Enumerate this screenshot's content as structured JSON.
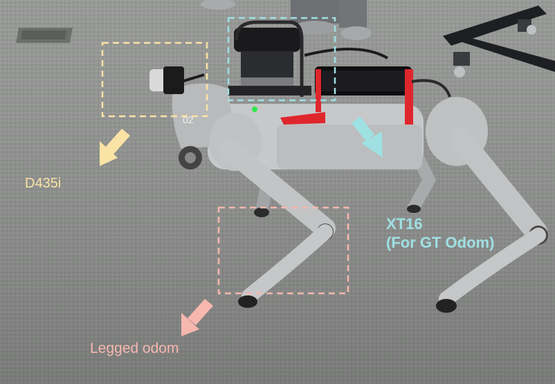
{
  "annotations": {
    "camera_label": "D435i",
    "lidar_label_line1": "XT16",
    "lidar_label_line2": "(For GT Odom)",
    "legs_label": "Legged odom"
  },
  "colors": {
    "camera": "#fbe3a6",
    "lidar": "#9fe0e3",
    "legs": "#f6b7ae",
    "floor": "#8d8f8d",
    "robot_body": "#c9cacb",
    "battery_tape": "#e0262d"
  }
}
